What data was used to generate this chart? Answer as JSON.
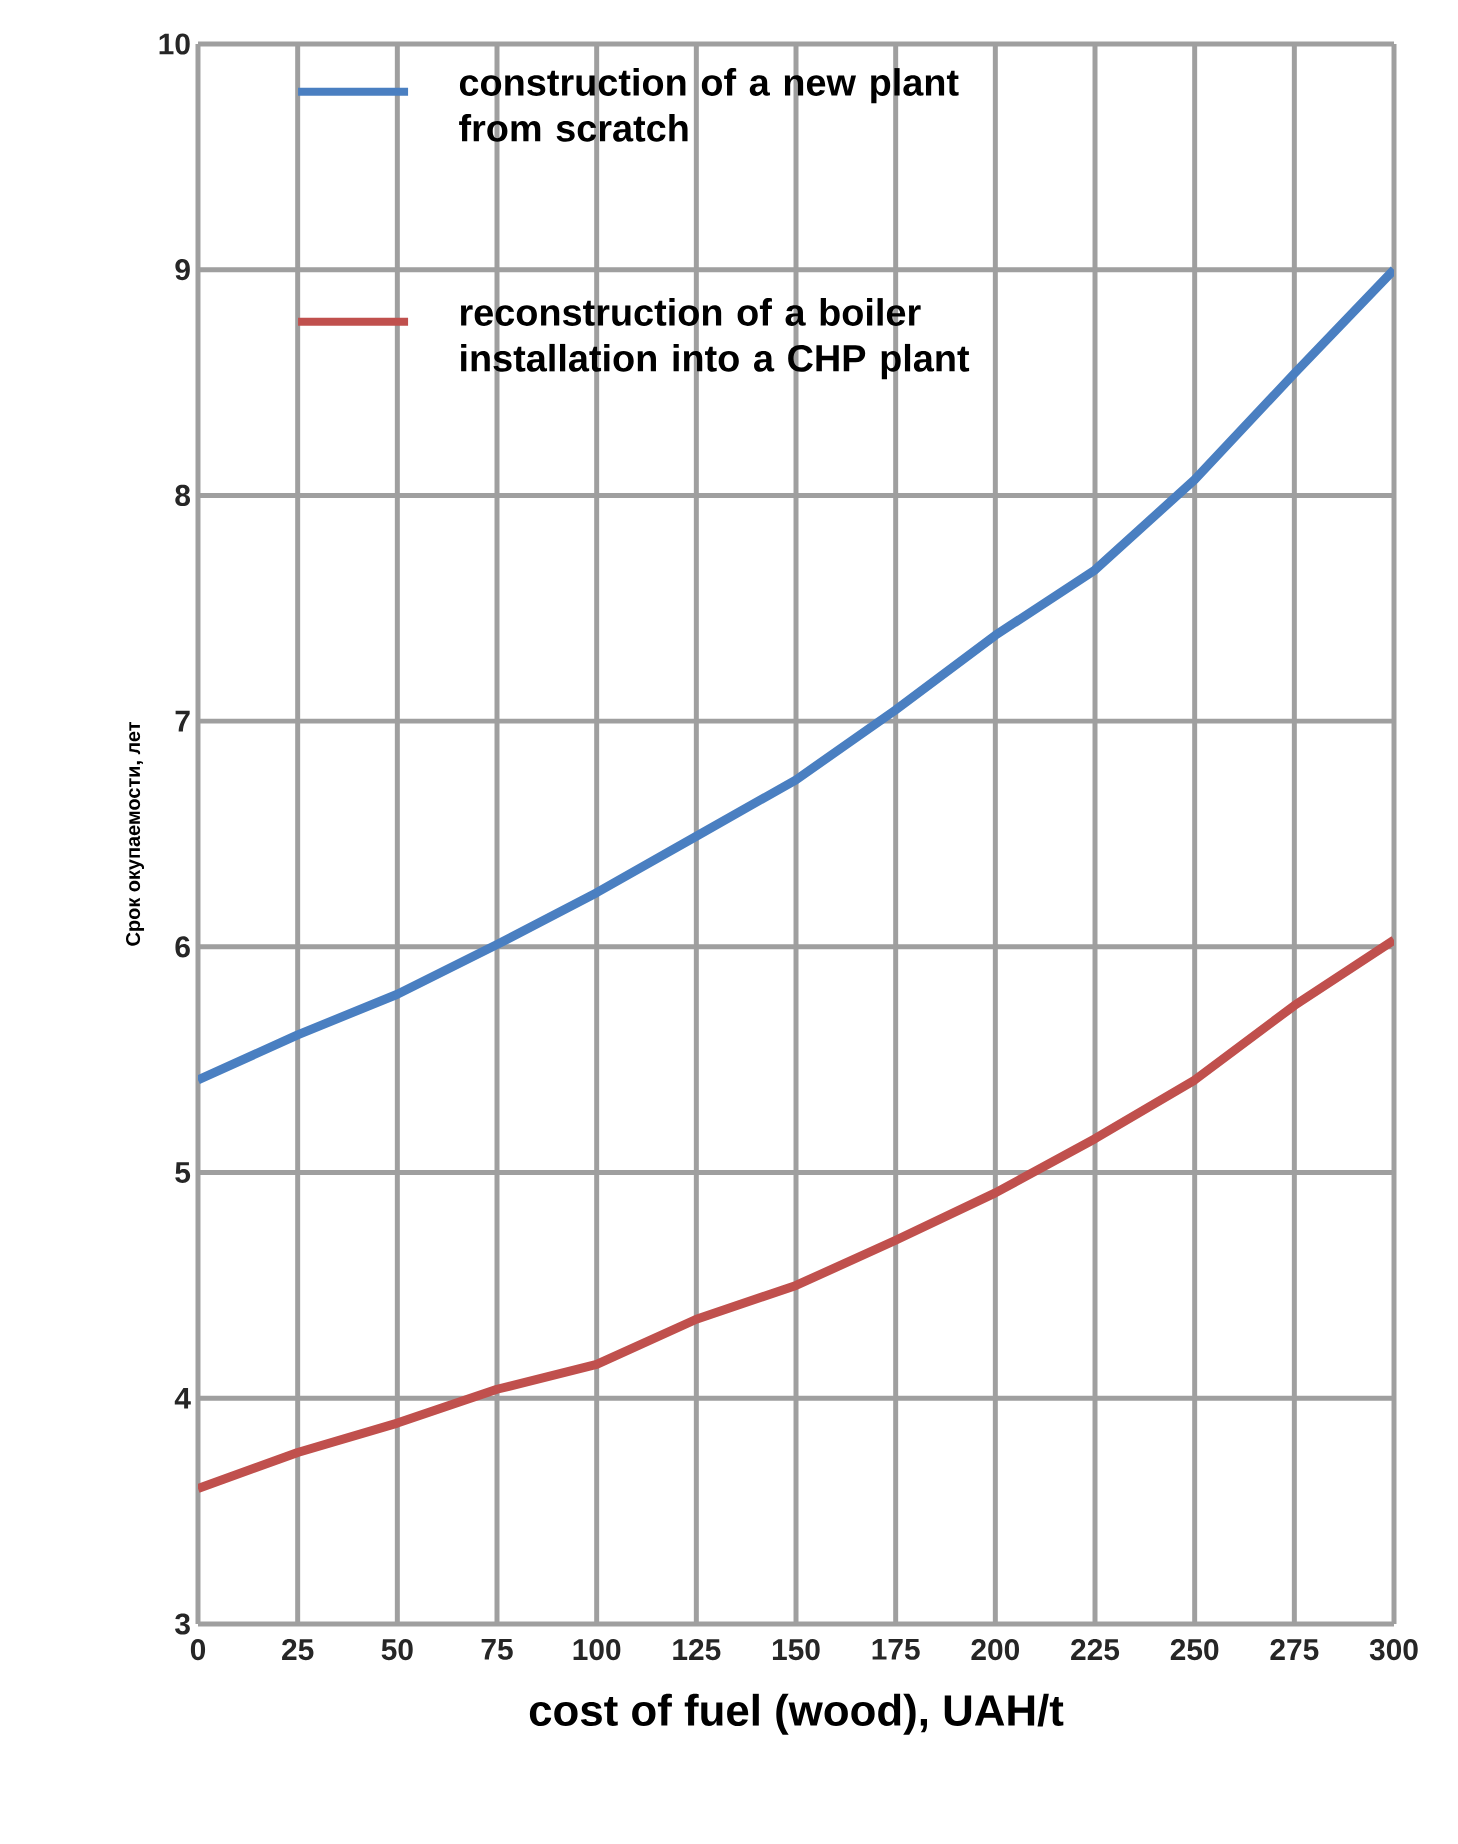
{
  "chart_data": {
    "type": "line",
    "xlabel": "cost of fuel (wood), UAH/t",
    "ylabel": "Срок окупаемости, лет",
    "x": [
      0,
      25,
      50,
      75,
      100,
      125,
      150,
      175,
      200,
      225,
      250,
      275,
      300
    ],
    "series": [
      {
        "name": "construction of a new plant from scratch",
        "color": "#4a7fc1",
        "values": [
          5.41,
          5.61,
          5.79,
          6.01,
          6.24,
          6.49,
          6.74,
          7.05,
          7.38,
          7.67,
          8.07,
          8.54,
          9.0
        ]
      },
      {
        "name": "reconstruction of a boiler installation into a CHP plant",
        "color": "#c0504d",
        "values": [
          3.6,
          3.76,
          3.89,
          4.04,
          4.15,
          4.35,
          4.5,
          4.7,
          4.91,
          5.15,
          5.41,
          5.74,
          6.03
        ]
      }
    ],
    "xlim": [
      0,
      300
    ],
    "xticks": [
      0,
      25,
      50,
      75,
      100,
      125,
      150,
      175,
      200,
      225,
      250,
      275,
      300
    ],
    "ylim": [
      3,
      10
    ],
    "yticks": [
      3,
      4,
      5,
      6,
      7,
      8,
      9,
      10
    ],
    "grid": true,
    "legend": "top left",
    "marker": "none",
    "line_style": "solid"
  }
}
